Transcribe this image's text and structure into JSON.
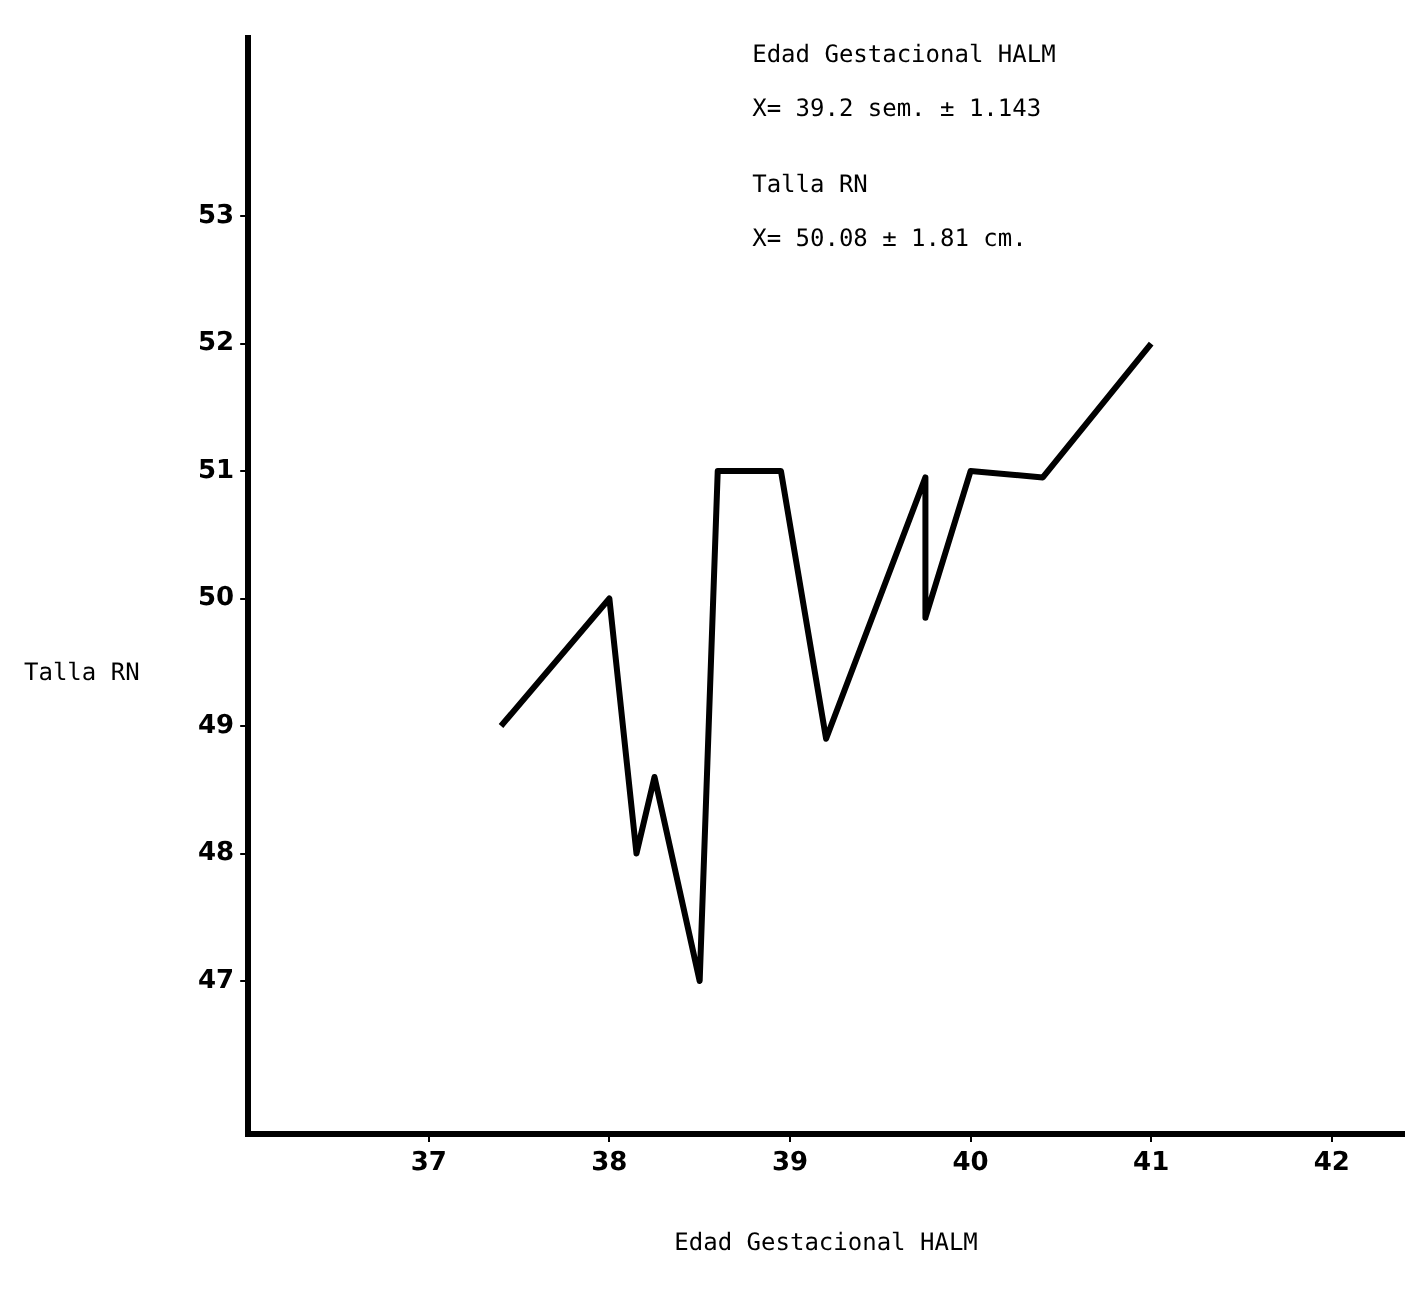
{
  "chart_data": {
    "type": "line",
    "xlabel": "Edad Gestacional HALM",
    "ylabel": "Talla RN",
    "annotations": [
      "Edad Gestacional HALM",
      "X= 39.2 sem. ± 1.143",
      "Talla RN",
      "X= 50.08 ± 1.81 cm."
    ],
    "series": [
      {
        "color": "#000000",
        "x": [
          37.4,
          38.0,
          38.15,
          38.25,
          38.5,
          38.6,
          38.95,
          39.2,
          39.75,
          39.75,
          40.0,
          40.4,
          41.0
        ],
        "values": [
          49,
          50,
          48,
          48.6,
          47,
          51,
          51,
          48.9,
          50.95,
          49.85,
          51,
          50.95,
          52
        ]
      }
    ],
    "xlim": [
      36,
      42.4
    ],
    "xticks": [
      37,
      38,
      39,
      40,
      41,
      42
    ],
    "ylim": [
      45.8,
      54.4
    ],
    "yticks": [
      47,
      48,
      49,
      50,
      51,
      52,
      53
    ],
    "grid": false,
    "legend": false,
    "marker": "none",
    "line_style": "solid"
  }
}
